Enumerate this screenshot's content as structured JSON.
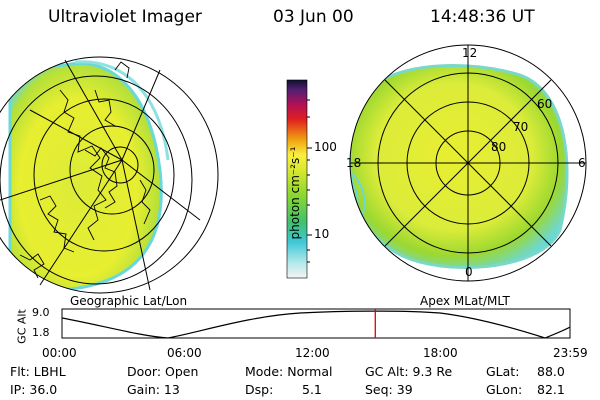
{
  "header": {
    "title": "Ultraviolet Imager",
    "date": "03 Jun 00",
    "time": "14:48:36 UT"
  },
  "colorbar": {
    "unit_label": "photon cm⁻²s⁻¹",
    "tick_100": "100",
    "tick_10": "10"
  },
  "left_panel": {
    "caption": "Geographic Lat/Lon"
  },
  "right_panel": {
    "caption": "Apex MLat/MLT",
    "mlt_12": "12",
    "mlt_18": "18",
    "mlt_6": "6",
    "mlt_0": "0",
    "lat_60": "60",
    "lat_70": "70",
    "lat_80": "80"
  },
  "orbit_plot": {
    "ylabel": "GC Alt",
    "y_top": "9.0",
    "y_bottom": "1.8",
    "x_ticks": [
      "00:00",
      "06:00",
      "12:00",
      "18:00",
      "23:59"
    ],
    "current_time_fraction": 0.6167
  },
  "info": {
    "flt": "Flt: LBHL",
    "ip": "IP: 36.0",
    "door": "Door: Open",
    "gain": "Gain: 13",
    "mode": "Mode: Normal",
    "dsp_label": "Dsp:",
    "dsp_value": "5.1",
    "gcalt": "GC Alt: 9.3 Re",
    "seq": "Seq: 39",
    "glat_label": "GLat:",
    "glat_value": "88.0",
    "glon_label": "GLon:",
    "glon_value": "82.1"
  },
  "colors": {
    "auroral_yellow": "#e8ee30",
    "auroral_green": "#9cd830",
    "low_cyan": "#6ad8d8",
    "time_marker": "#e00000"
  }
}
